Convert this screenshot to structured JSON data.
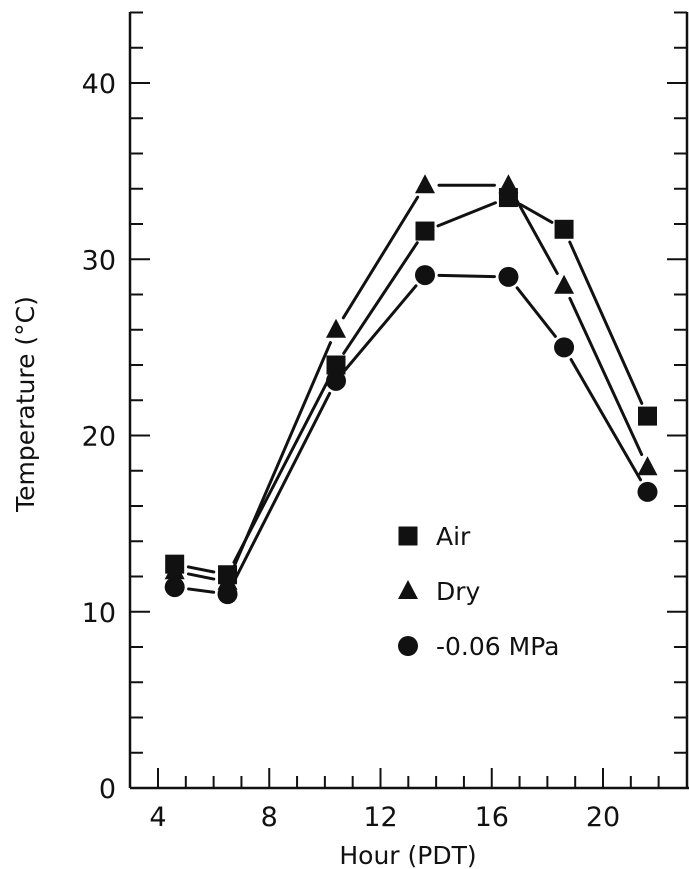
{
  "chart_data": {
    "type": "line",
    "title": "",
    "xlabel": "Hour (PDT)",
    "ylabel": "Temperature (°C)",
    "xlim": [
      3,
      23.5
    ],
    "ylim": [
      0,
      44
    ],
    "x_ticks": [
      4,
      8,
      12,
      16,
      20
    ],
    "y_ticks": [
      0,
      10,
      20,
      30,
      40
    ],
    "grid": false,
    "legend_position": "center-right",
    "x": [
      4.6,
      6.5,
      10.4,
      13.6,
      16.6,
      18.6,
      21.6
    ],
    "series": [
      {
        "name": "Air",
        "marker": "square",
        "values": [
          12.7,
          12.1,
          24.0,
          31.6,
          33.5,
          31.7,
          21.1
        ]
      },
      {
        "name": "Dry",
        "marker": "triangle",
        "values": [
          12.3,
          11.7,
          26.0,
          34.2,
          34.2,
          28.5,
          18.2
        ]
      },
      {
        "name": "-0.06 MPa",
        "marker": "circle",
        "values": [
          11.4,
          11.0,
          23.1,
          29.1,
          29.0,
          25.0,
          16.8
        ]
      }
    ]
  }
}
